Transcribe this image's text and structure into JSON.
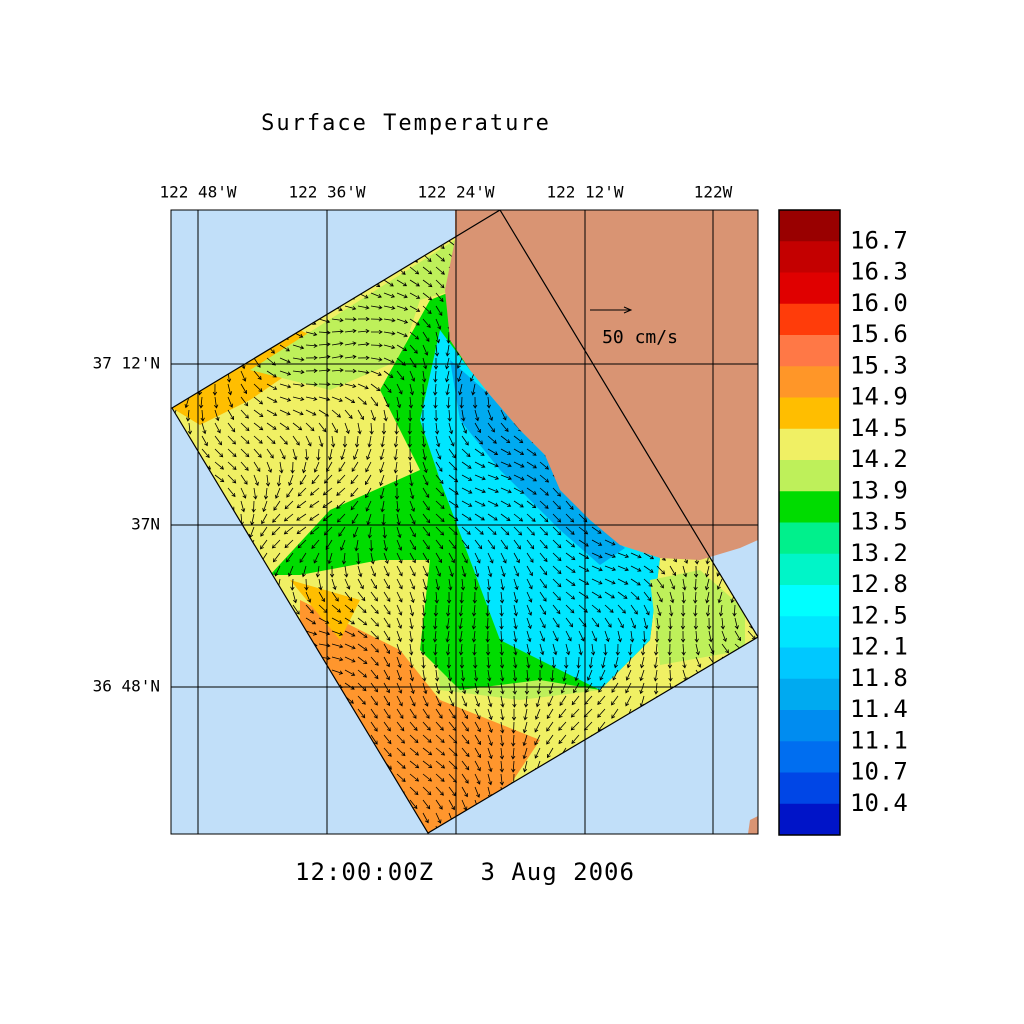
{
  "title": "Surface Temperature",
  "lon_labels": [
    "122 48'W",
    "122 36'W",
    "122 24'W",
    "122 12'W",
    "122W"
  ],
  "lat_labels": [
    "37 12'N",
    "37N",
    "36 48'N"
  ],
  "scale_label": "50 cm/s",
  "time_label": "12:00:00Z   3 Aug 2006",
  "colorbar": {
    "levels": [
      16.7,
      16.3,
      {
        "value": 16,
        "label": "16.0"
      },
      15.6,
      15.3,
      14.9,
      14.5,
      14.2,
      13.9,
      13.5,
      13.2,
      12.8,
      12.5,
      12.1,
      11.8,
      11.4,
      11.1,
      10.7,
      10.4
    ],
    "colors": [
      "#990000",
      "#c40000",
      "#e00000",
      "#ff3c0a",
      "#ff7846",
      "#ff9628",
      "#ffbe00",
      "#f0f064",
      "#bef05a",
      "#00dc00",
      "#00f08c",
      "#00f5c8",
      "#00ffff",
      "#00e6ff",
      "#00c8ff",
      "#00aaf0",
      "#008cf0",
      "#006ef0",
      "#0046e6",
      "#0014c8"
    ]
  }
}
